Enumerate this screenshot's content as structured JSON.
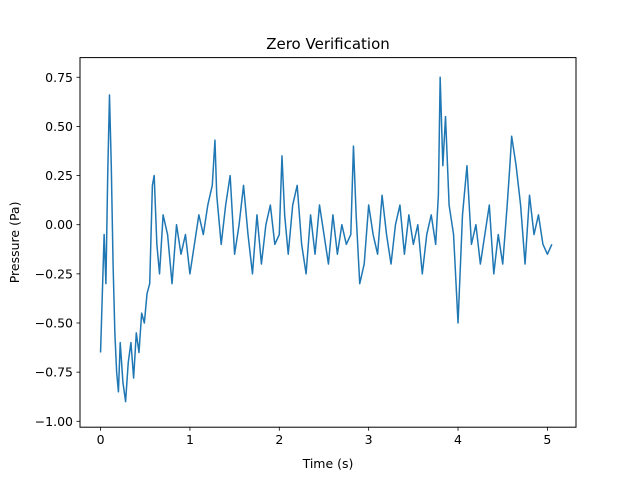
{
  "chart_data": {
    "type": "line",
    "title": "Zero Verification",
    "xlabel": "Time (s)",
    "ylabel": "Pressure (Pa)",
    "xlim": [
      -0.23,
      5.32
    ],
    "ylim": [
      -1.03,
      0.85
    ],
    "xticks": [
      0,
      1,
      2,
      3,
      4,
      5
    ],
    "xtick_labels": [
      "0",
      "1",
      "2",
      "3",
      "4",
      "5"
    ],
    "yticks": [
      -1.0,
      -0.75,
      -0.5,
      -0.25,
      0.0,
      0.25,
      0.5,
      0.75
    ],
    "ytick_labels": [
      "−1.00",
      "−0.75",
      "−0.50",
      "−0.25",
      "0.00",
      "0.25",
      "0.50",
      "0.75"
    ],
    "grid": false,
    "legend": "none",
    "color": "#1f77b4",
    "series": [
      {
        "x": [
          0.0,
          0.02,
          0.04,
          0.06,
          0.08,
          0.1,
          0.12,
          0.14,
          0.16,
          0.18,
          0.2,
          0.22,
          0.25,
          0.28,
          0.31,
          0.34,
          0.37,
          0.4,
          0.43,
          0.46,
          0.49,
          0.52,
          0.55,
          0.58,
          0.6,
          0.63,
          0.66,
          0.7,
          0.75,
          0.8,
          0.85,
          0.9,
          0.95,
          1.0,
          1.05,
          1.1,
          1.15,
          1.2,
          1.25,
          1.28,
          1.3,
          1.35,
          1.4,
          1.45,
          1.5,
          1.55,
          1.6,
          1.65,
          1.7,
          1.75,
          1.8,
          1.85,
          1.9,
          1.95,
          2.0,
          2.03,
          2.06,
          2.1,
          2.15,
          2.2,
          2.25,
          2.3,
          2.35,
          2.4,
          2.45,
          2.5,
          2.55,
          2.6,
          2.65,
          2.7,
          2.75,
          2.8,
          2.83,
          2.86,
          2.9,
          2.95,
          3.0,
          3.05,
          3.1,
          3.15,
          3.2,
          3.25,
          3.3,
          3.35,
          3.4,
          3.45,
          3.5,
          3.55,
          3.6,
          3.65,
          3.7,
          3.75,
          3.78,
          3.8,
          3.83,
          3.86,
          3.9,
          3.95,
          4.0,
          4.05,
          4.1,
          4.15,
          4.2,
          4.25,
          4.3,
          4.35,
          4.4,
          4.45,
          4.5,
          4.55,
          4.58,
          4.6,
          4.65,
          4.7,
          4.75,
          4.8,
          4.85,
          4.9,
          4.95,
          5.0,
          5.05
        ],
        "y": [
          -0.65,
          -0.35,
          -0.05,
          -0.3,
          0.25,
          0.66,
          0.3,
          -0.2,
          -0.55,
          -0.75,
          -0.85,
          -0.6,
          -0.8,
          -0.9,
          -0.7,
          -0.6,
          -0.78,
          -0.55,
          -0.65,
          -0.45,
          -0.5,
          -0.35,
          -0.3,
          0.2,
          0.25,
          -0.1,
          -0.25,
          0.05,
          -0.05,
          -0.3,
          0.0,
          -0.15,
          -0.05,
          -0.25,
          -0.1,
          0.05,
          -0.05,
          0.1,
          0.2,
          0.43,
          0.15,
          -0.1,
          0.1,
          0.25,
          -0.15,
          0.0,
          0.2,
          -0.05,
          -0.25,
          0.05,
          -0.2,
          0.0,
          0.1,
          -0.1,
          -0.05,
          0.35,
          0.05,
          -0.15,
          0.1,
          0.2,
          -0.1,
          -0.25,
          0.05,
          -0.15,
          0.1,
          -0.05,
          -0.2,
          0.05,
          -0.15,
          0.0,
          -0.1,
          -0.05,
          0.4,
          0.05,
          -0.3,
          -0.2,
          0.1,
          -0.05,
          -0.15,
          0.15,
          -0.05,
          -0.2,
          0.0,
          0.1,
          -0.15,
          0.05,
          -0.1,
          0.0,
          -0.25,
          -0.05,
          0.05,
          -0.1,
          0.15,
          0.75,
          0.3,
          0.55,
          0.1,
          -0.05,
          -0.5,
          0.05,
          0.3,
          -0.1,
          0.0,
          -0.2,
          -0.05,
          0.1,
          -0.25,
          -0.05,
          -0.2,
          0.1,
          0.3,
          0.45,
          0.3,
          0.1,
          -0.2,
          0.15,
          -0.05,
          0.05,
          -0.1,
          -0.15,
          -0.1
        ]
      }
    ]
  }
}
